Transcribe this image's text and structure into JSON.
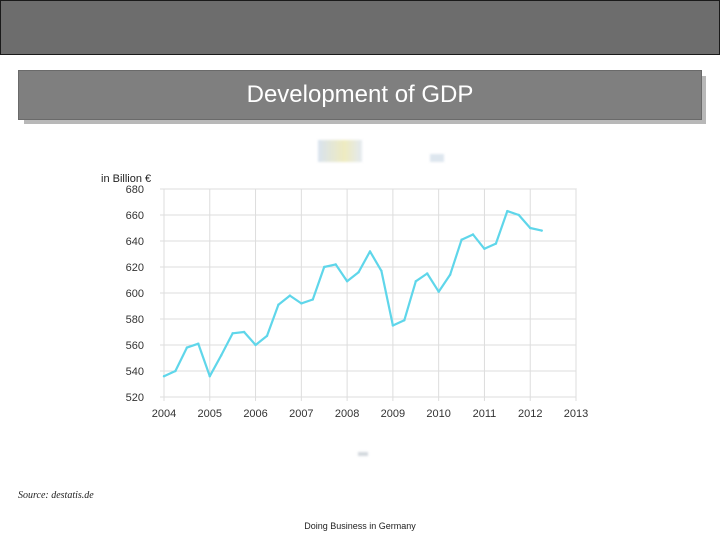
{
  "slide": {
    "title": "Development of GDP",
    "source": "Source: destatis.de",
    "footer": "Doing Business in Germany"
  },
  "colors": {
    "line": "#5fd6ea",
    "grid": "#dddddd",
    "plot_border": "#c8c8c8"
  },
  "chart_data": {
    "type": "line",
    "title": "",
    "xlabel": "",
    "ylabel": "in Billion €",
    "xlim": [
      2004,
      2013
    ],
    "ylim": [
      520,
      680
    ],
    "x_ticks": [
      2004,
      2005,
      2006,
      2007,
      2008,
      2009,
      2010,
      2011,
      2012,
      2013
    ],
    "x_tick_labels": [
      "2004",
      "2005",
      "2006",
      "2007",
      "2008",
      "2009",
      "2010",
      "2011",
      "2012",
      "2013"
    ],
    "y_ticks": [
      520,
      540,
      560,
      580,
      600,
      620,
      640,
      660,
      680
    ],
    "y_tick_labels": [
      "520",
      "540",
      "560",
      "580",
      "600",
      "620",
      "640",
      "660",
      "680"
    ],
    "grid": true,
    "series": [
      {
        "name": "GDP",
        "x": [
          2004.0,
          2004.25,
          2004.5,
          2004.75,
          2005.0,
          2005.25,
          2005.5,
          2005.75,
          2006.0,
          2006.25,
          2006.5,
          2006.75,
          2007.0,
          2007.25,
          2007.5,
          2007.75,
          2008.0,
          2008.25,
          2008.5,
          2008.75,
          2009.0,
          2009.25,
          2009.5,
          2009.75,
          2010.0,
          2010.25,
          2010.5,
          2010.75,
          2011.0,
          2011.25,
          2011.5,
          2011.75,
          2012.0,
          2012.25
        ],
        "values": [
          536,
          540,
          558,
          561,
          536,
          552,
          569,
          570,
          560,
          567,
          591,
          598,
          592,
          595,
          620,
          622,
          609,
          616,
          632,
          617,
          575,
          579,
          609,
          615,
          601,
          614,
          641,
          645,
          634,
          638,
          663,
          660,
          650,
          648
        ]
      }
    ]
  }
}
